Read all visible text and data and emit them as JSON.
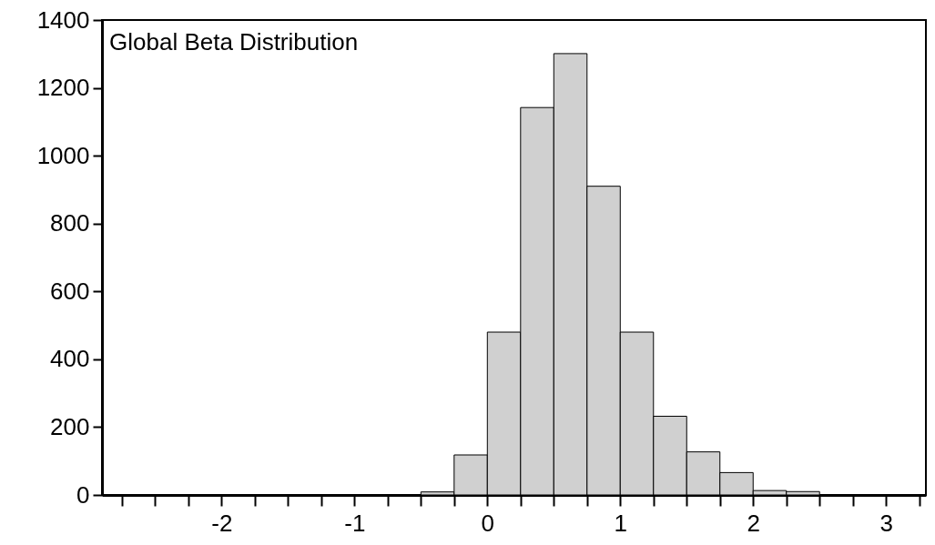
{
  "chart_data": {
    "type": "histogram",
    "title": "Global Beta Distribution",
    "bins": [
      -0.5,
      -0.25,
      0,
      0.25,
      0.5,
      0.75,
      1,
      1.25,
      1.5,
      1.75,
      2,
      2.25,
      2.5
    ],
    "values": [
      9,
      118,
      480,
      1142,
      1301,
      910,
      480,
      232,
      127,
      66,
      13,
      10
    ],
    "color": "#d0d0d0",
    "xlim": [
      -2.9,
      3.3
    ],
    "xticks": [
      {
        "value": -2.75,
        "label": null
      },
      {
        "value": -2.5,
        "label": null
      },
      {
        "value": -2.25,
        "label": null
      },
      -2,
      {
        "value": -1.75,
        "label": null
      },
      {
        "value": -1.5,
        "label": null
      },
      {
        "value": -1.25,
        "label": null
      },
      -1,
      {
        "value": -0.75,
        "label": null
      },
      {
        "value": -0.5,
        "label": null
      },
      {
        "value": -0.25,
        "label": null
      },
      0,
      {
        "value": 0.25,
        "label": null
      },
      {
        "value": 0.5,
        "label": null
      },
      {
        "value": 0.75,
        "label": null
      },
      1,
      {
        "value": 1.25,
        "label": null
      },
      {
        "value": 1.5,
        "label": null
      },
      {
        "value": 1.75,
        "label": null
      },
      2,
      {
        "value": 2.25,
        "label": null
      },
      {
        "value": 2.5,
        "label": null
      },
      {
        "value": 2.75,
        "label": null
      },
      3,
      {
        "value": 3.25,
        "label": null
      }
    ],
    "ylim": [
      0,
      1400
    ],
    "yticks": [
      0,
      200,
      400,
      600,
      800,
      1000,
      1200,
      1400
    ],
    "grid": false
  }
}
